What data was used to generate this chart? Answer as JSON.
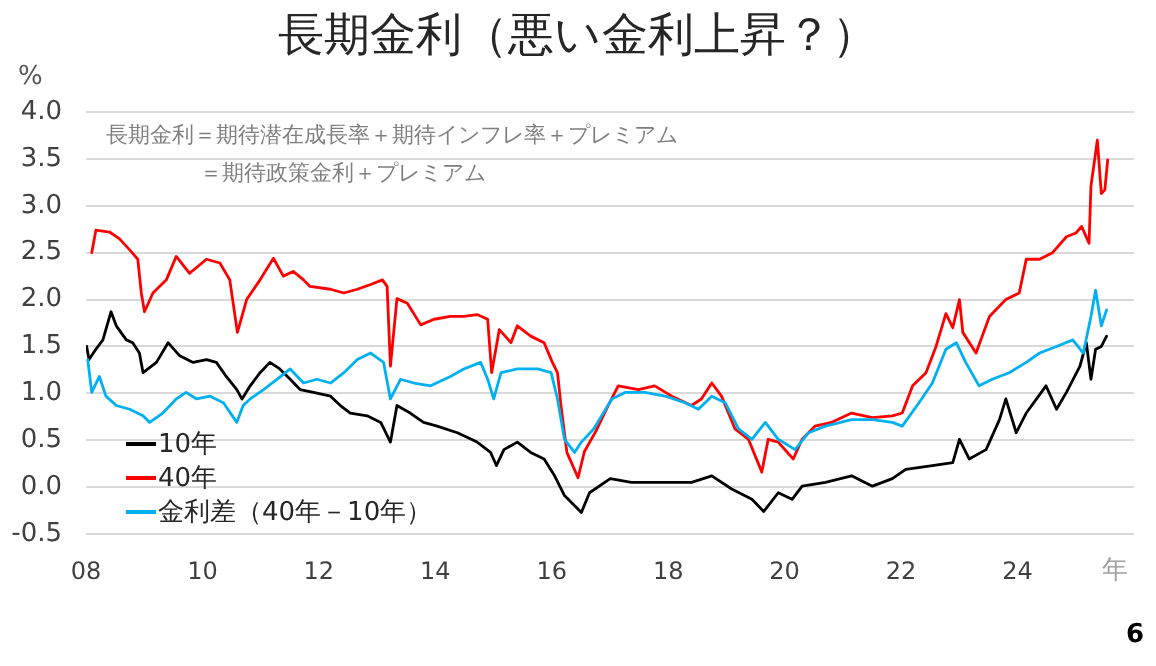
{
  "chart_data": {
    "type": "line",
    "title": "長期金利（悪い金利上昇？）",
    "ylabel": "%",
    "xlabel": "年",
    "annotations": [
      "長期金利＝期待潜在成長率＋期待インフレ率＋プレミアム",
      "＝期待政策金利＋プレミアム",
      "6"
    ],
    "xlim": [
      "2008",
      "2026"
    ],
    "xticks": [
      {
        "value": "2008",
        "label": "08"
      },
      {
        "value": "2010",
        "label": "10"
      },
      {
        "value": "2012",
        "label": "12"
      },
      {
        "value": "2014",
        "label": "14"
      },
      {
        "value": "2016",
        "label": "16"
      },
      {
        "value": "2018",
        "label": "18"
      },
      {
        "value": "2020",
        "label": "20"
      },
      {
        "value": "2022",
        "label": "22"
      },
      {
        "value": "2024",
        "label": "24"
      }
    ],
    "ylim": [
      -0.5,
      4.0
    ],
    "yticks": [
      -0.5,
      {
        "value": 0,
        "label": "0.0"
      },
      0.5,
      {
        "value": 1,
        "label": "1.0"
      },
      1.5,
      {
        "value": 2,
        "label": "2.0"
      },
      2.5,
      {
        "value": 3,
        "label": "3.0"
      },
      3.5,
      {
        "value": 4,
        "label": "4.0"
      }
    ],
    "grid": "y",
    "legend": "bottom left",
    "series": [
      {
        "name": "10年",
        "color": "#000000",
        "x": [
          "2008-01-05",
          "2008-01-20",
          "2008-03-03",
          "2008-04-16",
          "2008-06-06",
          "2008-07-09",
          "2008-09-10",
          "2008-10-20",
          "2008-12-01",
          "2008-12-24",
          "2009-03-18",
          "2009-05-30",
          "2009-08-11",
          "2009-11-03",
          "2010-01-26",
          "2010-03-29",
          "2010-05-30",
          "2010-08-04",
          "2010-09-06",
          "2010-10-27",
          "2010-12-28",
          "2011-02-28",
          "2011-05-01",
          "2011-07-05",
          "2011-09-05",
          "2011-11-28",
          "2012-03-14",
          "2012-05-15",
          "2012-07-16",
          "2012-10-30",
          "2013-01-23",
          "2013-03-25",
          "2013-05-05",
          "2013-07-27",
          "2013-10-19",
          "2014-01-12",
          "2014-05-19",
          "2014-09-20",
          "2014-12-13",
          "2015-01-19",
          "2015-03-07",
          "2015-05-30",
          "2015-08-22",
          "2015-11-14",
          "2016-01-19",
          "2016-03-21",
          "2016-07-05",
          "2016-08-25",
          "2017-01-02",
          "2017-05-15",
          "2017-10-30",
          "2018-05-27",
          "2018-10-01",
          "2019-02-03",
          "2019-06-10",
          "2019-08-23",
          "2019-11-22",
          "2020-02-17",
          "2020-04-20",
          "2020-09-13",
          "2021-02-24",
          "2021-07-05",
          "2021-11-07",
          "2022-01-30",
          "2022-07-16",
          "2022-11-21",
          "2023-01-02",
          "2023-03-04",
          "2023-06-18",
          "2023-09-10",
          "2023-10-20",
          "2023-12-24",
          "2024-02-25",
          "2024-06-28",
          "2024-09-02",
          "2024-11-03",
          "2025-01-27",
          "2025-03-08",
          "2025-04-06",
          "2025-05-05",
          "2025-06-10",
          "2025-07-13"
        ],
        "values": [
          1.5,
          1.36,
          1.47,
          1.57,
          1.87,
          1.72,
          1.57,
          1.54,
          1.43,
          1.22,
          1.33,
          1.54,
          1.4,
          1.33,
          1.36,
          1.33,
          1.18,
          1.04,
          0.94,
          1.08,
          1.22,
          1.33,
          1.26,
          1.15,
          1.04,
          1.01,
          0.97,
          0.87,
          0.79,
          0.76,
          0.69,
          0.48,
          0.87,
          0.79,
          0.69,
          0.65,
          0.58,
          0.48,
          0.37,
          0.23,
          0.4,
          0.48,
          0.37,
          0.3,
          0.12,
          -0.09,
          -0.27,
          -0.06,
          0.09,
          0.05,
          0.05,
          0.05,
          0.12,
          -0.02,
          -0.13,
          -0.26,
          -0.06,
          -0.13,
          0.01,
          0.05,
          0.12,
          0.01,
          0.09,
          0.19,
          0.23,
          0.26,
          0.51,
          0.3,
          0.4,
          0.72,
          0.94,
          0.58,
          0.79,
          1.08,
          0.83,
          1.01,
          1.29,
          1.54,
          1.15,
          1.47,
          1.5,
          1.61
        ]
      },
      {
        "name": "40年",
        "color": "#ff0000",
        "x": [
          "2008-02-06",
          "2008-03-03",
          "2008-05-27",
          "2008-07-28",
          "2008-10-01",
          "2008-11-21",
          "2008-12-13",
          "2009-01-02",
          "2009-02-24",
          "2009-05-19",
          "2009-07-20",
          "2009-10-12",
          "2010-01-26",
          "2010-04-20",
          "2010-06-21",
          "2010-08-08",
          "2010-10-05",
          "2010-12-28",
          "2011-03-22",
          "2011-05-23",
          "2011-07-24",
          "2011-09-27",
          "2011-11-06",
          "2012-03-14",
          "2012-06-06",
          "2012-08-29",
          "2012-11-21",
          "2013-02-03",
          "2013-03-04",
          "2013-03-25",
          "2013-05-05",
          "2013-07-09",
          "2013-10-01",
          "2013-12-24",
          "2014-04-05",
          "2014-06-28",
          "2014-09-20",
          "2014-11-25",
          "2014-12-20",
          "2015-02-06",
          "2015-04-20",
          "2015-05-30",
          "2015-08-22",
          "2015-11-14",
          "2016-01-05",
          "2016-02-06",
          "2016-02-28",
          "2016-04-05",
          "2016-06-14",
          "2016-07-24",
          "2016-10-05",
          "2016-12-20",
          "2017-02-21",
          "2017-06-28",
          "2017-10-08",
          "2018-01-23",
          "2018-05-27",
          "2018-07-28",
          "2018-10-01",
          "2018-12-01",
          "2019-02-24",
          "2019-05-19",
          "2019-08-11",
          "2019-09-20",
          "2019-11-22",
          "2020-02-24",
          "2020-04-20",
          "2020-07-09",
          "2020-10-20",
          "2021-02-24",
          "2021-07-05",
          "2021-11-07",
          "2022-01-08",
          "2022-03-14",
          "2022-06-06",
          "2022-08-08",
          "2022-10-09",
          "2022-11-21",
          "2023-01-02",
          "2023-01-23",
          "2023-04-16",
          "2023-07-09",
          "2023-10-20",
          "2024-01-12",
          "2024-02-25",
          "2024-05-19",
          "2024-08-08",
          "2024-11-03",
          "2025-01-02",
          "2025-02-06",
          "2025-03-25",
          "2025-04-06",
          "2025-05-16",
          "2025-06-10",
          "2025-07-02",
          "2025-07-20"
        ],
        "values": [
          2.5,
          2.74,
          2.72,
          2.65,
          2.53,
          2.43,
          2.07,
          1.87,
          2.07,
          2.21,
          2.46,
          2.28,
          2.43,
          2.39,
          2.21,
          1.65,
          2.0,
          2.21,
          2.44,
          2.25,
          2.3,
          2.21,
          2.14,
          2.11,
          2.07,
          2.11,
          2.16,
          2.21,
          2.14,
          1.29,
          2.01,
          1.96,
          1.73,
          1.79,
          1.82,
          1.82,
          1.84,
          1.79,
          1.22,
          1.68,
          1.54,
          1.72,
          1.61,
          1.54,
          1.33,
          1.22,
          0.87,
          0.37,
          0.1,
          0.38,
          0.6,
          0.87,
          1.08,
          1.04,
          1.08,
          0.97,
          0.87,
          0.94,
          1.11,
          0.97,
          0.62,
          0.51,
          0.16,
          0.51,
          0.48,
          0.3,
          0.51,
          0.65,
          0.69,
          0.79,
          0.74,
          0.76,
          0.79,
          1.08,
          1.22,
          1.5,
          1.85,
          1.7,
          2.0,
          1.65,
          1.43,
          1.82,
          2.0,
          2.07,
          2.43,
          2.43,
          2.5,
          2.67,
          2.71,
          2.78,
          2.6,
          3.21,
          3.7,
          3.13,
          3.17,
          3.49
        ]
      },
      {
        "name": "金利差（40年－10年）",
        "color": "#00b0f0",
        "x": [
          "2008-01-12",
          "2008-02-06",
          "2008-03-25",
          "2008-05-05",
          "2008-07-09",
          "2008-10-01",
          "2008-12-24",
          "2009-02-03",
          "2009-04-27",
          "2009-07-20",
          "2009-09-20",
          "2009-11-25",
          "2010-02-17",
          "2010-05-12",
          "2010-08-04",
          "2010-09-13",
          "2010-10-27",
          "2011-01-19",
          "2011-04-13",
          "2011-07-05",
          "2011-09-27",
          "2011-12-20",
          "2012-03-14",
          "2012-06-06",
          "2012-08-29",
          "2012-11-21",
          "2013-02-10",
          "2013-03-25",
          "2013-05-27",
          "2013-08-19",
          "2013-12-02",
          "2014-04-05",
          "2014-06-28",
          "2014-10-12",
          "2014-11-25",
          "2015-01-02",
          "2015-02-17",
          "2015-05-30",
          "2015-10-05",
          "2015-12-28",
          "2016-02-06",
          "2016-03-21",
          "2016-05-23",
          "2016-07-05",
          "2016-09-20",
          "2017-01-12",
          "2017-04-05",
          "2017-08-08",
          "2017-12-13",
          "2018-04-16",
          "2018-07-09",
          "2018-10-01",
          "2018-12-24",
          "2019-03-18",
          "2019-06-10",
          "2019-09-02",
          "2019-11-22",
          "2020-03-07",
          "2020-05-30",
          "2020-09-13",
          "2021-02-24",
          "2021-07-05",
          "2021-11-07",
          "2022-01-08",
          "2022-04-23",
          "2022-07-16",
          "2022-10-09",
          "2022-12-13",
          "2023-02-10",
          "2023-05-05",
          "2023-07-27",
          "2023-11-10",
          "2024-02-25",
          "2024-05-19",
          "2024-09-02",
          "2024-12-13",
          "2025-02-17",
          "2025-04-06",
          "2025-05-05",
          "2025-06-10",
          "2025-07-13"
        ],
        "values": [
          1.36,
          1.01,
          1.18,
          0.97,
          0.87,
          0.83,
          0.76,
          0.69,
          0.79,
          0.94,
          1.01,
          0.94,
          0.97,
          0.9,
          0.69,
          0.87,
          0.94,
          1.04,
          1.15,
          1.26,
          1.11,
          1.15,
          1.11,
          1.22,
          1.36,
          1.43,
          1.33,
          0.94,
          1.15,
          1.11,
          1.08,
          1.18,
          1.26,
          1.33,
          1.15,
          0.94,
          1.22,
          1.26,
          1.26,
          1.22,
          0.94,
          0.51,
          0.37,
          0.48,
          0.62,
          0.94,
          1.01,
          1.01,
          0.97,
          0.9,
          0.83,
          0.97,
          0.9,
          0.62,
          0.51,
          0.69,
          0.51,
          0.4,
          0.58,
          0.65,
          0.72,
          0.72,
          0.69,
          0.65,
          0.9,
          1.11,
          1.47,
          1.54,
          1.33,
          1.08,
          1.15,
          1.22,
          1.33,
          1.43,
          1.5,
          1.57,
          1.43,
          1.82,
          2.1,
          1.72,
          1.89
        ]
      }
    ]
  }
}
